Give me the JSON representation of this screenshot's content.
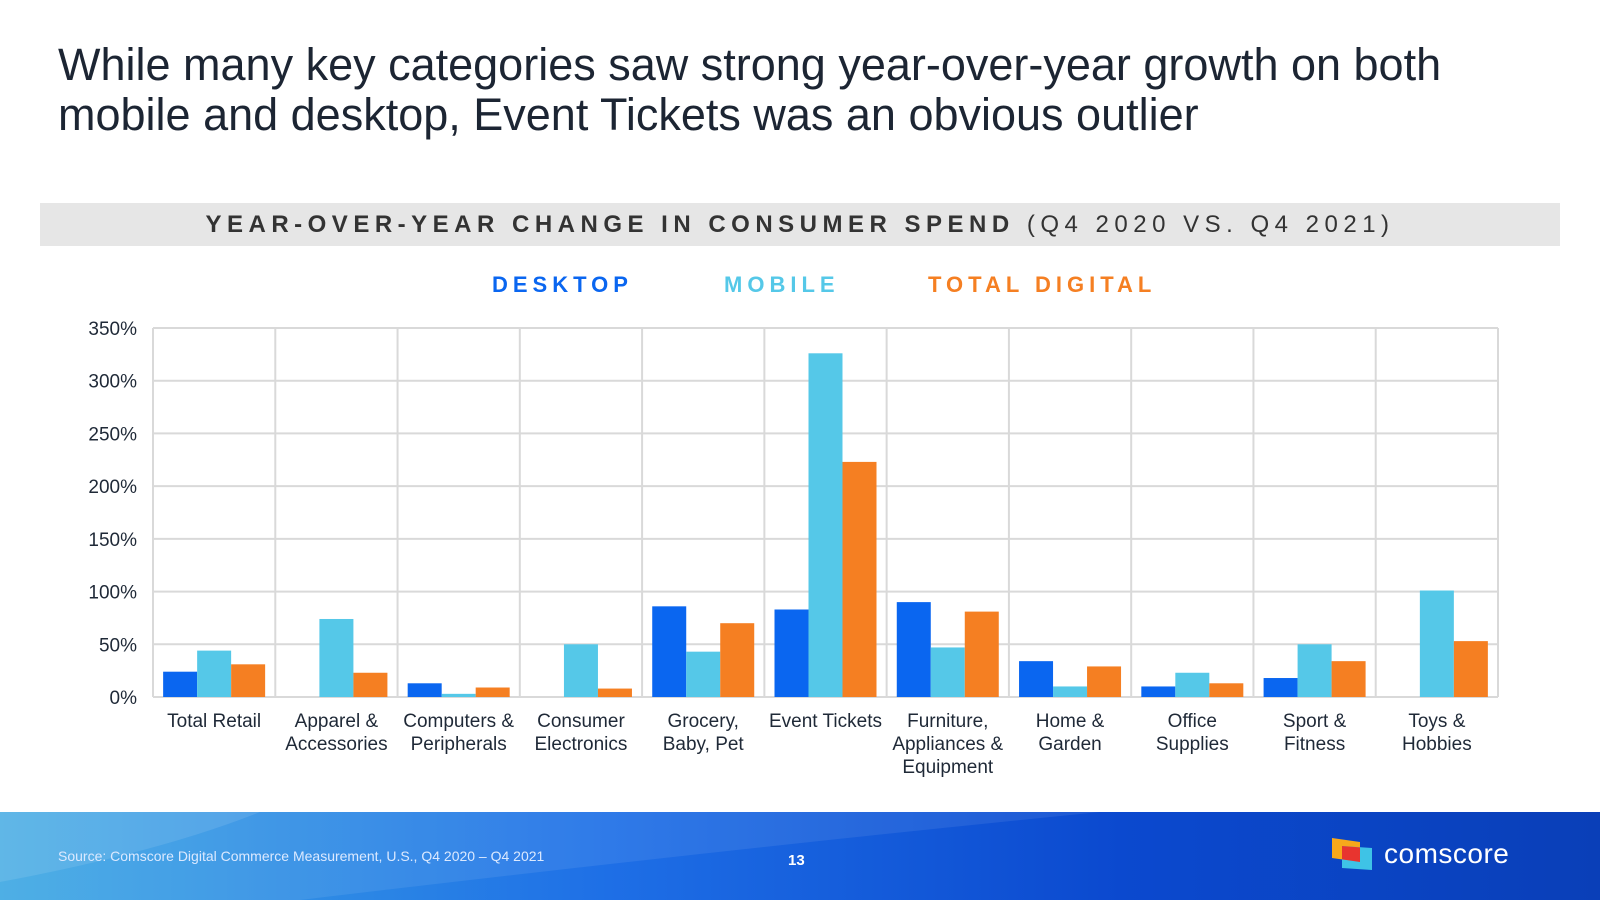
{
  "slide": {
    "title": "While many key categories saw strong year-over-year growth on both mobile and desktop, Event Tickets was an obvious outlier",
    "page_number": "13",
    "source": "Source: Comscore Digital Commerce Measurement, U.S., Q4 2020 – Q4 2021",
    "brand": "comscore"
  },
  "colors": {
    "desktop": "#0a66f0",
    "mobile": "#55c8e8",
    "total_digital": "#f57f22",
    "grid": "#d9d9d9",
    "axis_text": "#1f2937"
  },
  "chart_data": {
    "type": "bar",
    "title_bold": "YEAR-OVER-YEAR CHANGE IN CONSUMER SPEND",
    "title_light": "(Q4 2020 VS. Q4 2021)",
    "ylim": [
      0,
      350
    ],
    "yticks": [
      "0%",
      "50%",
      "100%",
      "150%",
      "200%",
      "250%",
      "300%",
      "350%"
    ],
    "ytick_values": [
      0,
      50,
      100,
      150,
      200,
      250,
      300,
      350
    ],
    "grid": true,
    "legend_position": "top-center",
    "categories": [
      [
        "Total Retail"
      ],
      [
        "Apparel &",
        "Accessories"
      ],
      [
        "Computers &",
        "Peripherals"
      ],
      [
        "Consumer",
        "Electronics"
      ],
      [
        "Grocery,",
        "Baby, Pet"
      ],
      [
        "Event Tickets"
      ],
      [
        "Furniture,",
        "Appliances &",
        "Equipment"
      ],
      [
        "Home &",
        "Garden"
      ],
      [
        "Office",
        "Supplies"
      ],
      [
        "Sport &",
        "Fitness"
      ],
      [
        "Toys &",
        "Hobbies"
      ]
    ],
    "series": [
      {
        "name": "DESKTOP",
        "color": "#0a66f0",
        "values": [
          24,
          0,
          13,
          0,
          86,
          83,
          90,
          34,
          10,
          18,
          0
        ]
      },
      {
        "name": "MOBILE",
        "color": "#55c8e8",
        "values": [
          44,
          74,
          3,
          50,
          43,
          326,
          47,
          10,
          23,
          50,
          101
        ]
      },
      {
        "name": "TOTAL DIGITAL",
        "color": "#f57f22",
        "values": [
          31,
          23,
          9,
          8,
          70,
          223,
          81,
          29,
          13,
          34,
          53
        ]
      }
    ]
  }
}
